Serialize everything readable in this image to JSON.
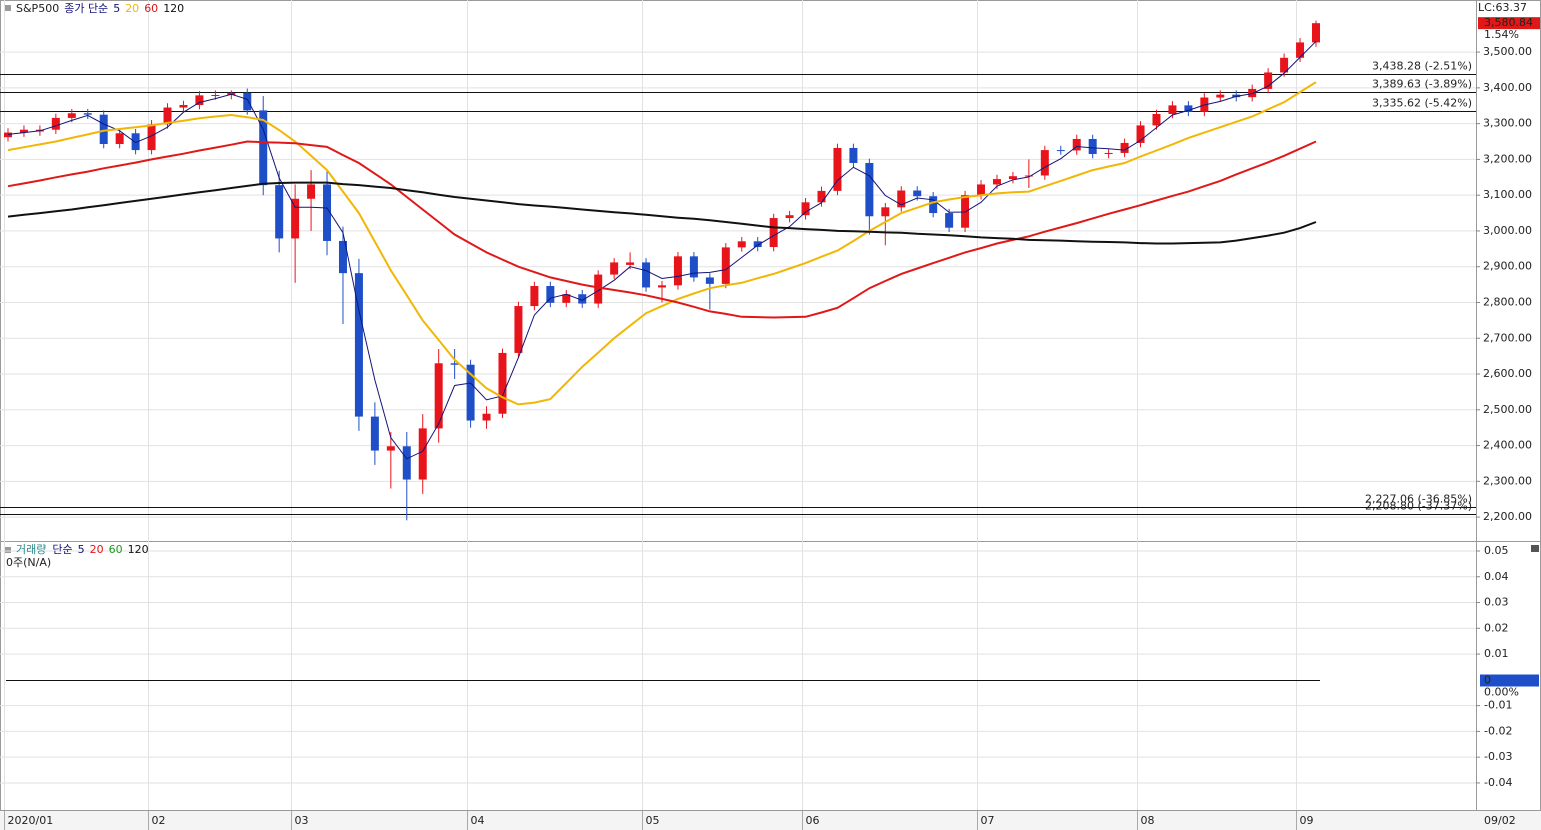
{
  "chart_data": [
    {
      "type": "candlestick",
      "title": "S&P500",
      "ma_label": "종가 단순",
      "lc_label": "LC:63.37",
      "last_price": {
        "value": 3580.84,
        "label": "3,580.84"
      },
      "last_change": {
        "value": 1.54,
        "label": "1.54%"
      },
      "date_label": "09/02",
      "up_color": "#e8141c",
      "down_color": "#1f4fc8",
      "categories": [
        "2020/01",
        null,
        null,
        null,
        null,
        null,
        null,
        null,
        null,
        "02",
        null,
        null,
        null,
        null,
        null,
        null,
        null,
        null,
        "03",
        null,
        null,
        null,
        null,
        null,
        null,
        null,
        null,
        null,
        null,
        "04",
        null,
        null,
        null,
        null,
        null,
        null,
        null,
        null,
        null,
        null,
        "05",
        null,
        null,
        null,
        null,
        null,
        null,
        null,
        null,
        null,
        "06",
        null,
        null,
        null,
        null,
        null,
        null,
        null,
        null,
        null,
        null,
        "07",
        null,
        null,
        null,
        null,
        null,
        null,
        null,
        null,
        null,
        "08",
        null,
        null,
        null,
        null,
        null,
        null,
        null,
        null,
        null,
        "09",
        null
      ],
      "open": [
        3262,
        3275,
        3278,
        3283,
        3316,
        3329,
        3325,
        3243,
        3273,
        3226,
        3298,
        3345,
        3352,
        3379,
        3380,
        3386,
        3337,
        3128,
        2979,
        3090,
        3130,
        2972,
        2882,
        2481,
        2386,
        2398,
        2305,
        2448,
        2630,
        2626,
        2470,
        2489,
        2659,
        2790,
        2846,
        2799,
        2823,
        2797,
        2878,
        2905,
        2912,
        2842,
        2848,
        2929,
        2870,
        2852,
        2954,
        2971,
        2955,
        3036,
        3044,
        3080,
        3112,
        3232,
        3190,
        3041,
        3066,
        3113,
        3097,
        3050,
        3009,
        3100,
        3130,
        3145,
        3153,
        3155,
        3226,
        3225,
        3257,
        3215,
        3218,
        3246,
        3295,
        3327,
        3351,
        3333,
        3373,
        3381,
        3374,
        3397,
        3443,
        3484,
        3527
      ],
      "high": [
        3287,
        3295,
        3295,
        3328,
        3341,
        3341,
        3337,
        3285,
        3285,
        3310,
        3357,
        3364,
        3391,
        3393,
        3393,
        3398,
        3377,
        3168,
        3130,
        3170,
        3170,
        3012,
        2922,
        2521,
        2438,
        2438,
        2488,
        2670,
        2670,
        2640,
        2510,
        2671,
        2802,
        2858,
        2858,
        2835,
        2835,
        2890,
        2924,
        2940,
        2924,
        2860,
        2941,
        2941,
        2882,
        2966,
        2983,
        2983,
        3048,
        3056,
        3092,
        3124,
        3244,
        3244,
        3202,
        3078,
        3125,
        3125,
        3109,
        3062,
        3112,
        3142,
        3157,
        3165,
        3200,
        3238,
        3238,
        3269,
        3269,
        3230,
        3258,
        3307,
        3339,
        3363,
        3363,
        3385,
        3393,
        3393,
        3409,
        3455,
        3496,
        3539,
        3588
      ],
      "low": [
        3250,
        3263,
        3266,
        3271,
        3304,
        3313,
        3231,
        3231,
        3214,
        3214,
        3286,
        3333,
        3340,
        3367,
        3368,
        3325,
        3100,
        2940,
        2855,
        3000,
        2932,
        2740,
        2441,
        2346,
        2280,
        2191,
        2265,
        2408,
        2586,
        2450,
        2447,
        2477,
        2647,
        2778,
        2787,
        2787,
        2785,
        2785,
        2866,
        2893,
        2830,
        2800,
        2836,
        2858,
        2780,
        2840,
        2942,
        2943,
        2943,
        3024,
        3032,
        3068,
        3100,
        3178,
        2990,
        2960,
        3054,
        3085,
        3038,
        2997,
        2997,
        3088,
        3118,
        3133,
        3120,
        3143,
        3213,
        3213,
        3203,
        3203,
        3206,
        3234,
        3283,
        3315,
        3321,
        3321,
        3361,
        3362,
        3362,
        3385,
        3431,
        3472,
        3515
      ],
      "close": [
        3275,
        3283,
        3283,
        3316,
        3329,
        3325,
        3243,
        3273,
        3226,
        3298,
        3345,
        3352,
        3379,
        3380,
        3386,
        3337,
        3128,
        2979,
        3090,
        3130,
        2972,
        2882,
        2481,
        2386,
        2398,
        2305,
        2448,
        2630,
        2626,
        2470,
        2489,
        2659,
        2790,
        2846,
        2799,
        2823,
        2797,
        2878,
        2912,
        2912,
        2842,
        2848,
        2929,
        2870,
        2852,
        2954,
        2971,
        2955,
        3036,
        3044,
        3080,
        3112,
        3232,
        3190,
        3041,
        3066,
        3113,
        3097,
        3050,
        3009,
        3100,
        3130,
        3145,
        3153,
        3155,
        3226,
        3225,
        3257,
        3215,
        3218,
        3246,
        3295,
        3327,
        3351,
        3333,
        3373,
        3381,
        3374,
        3397,
        3443,
        3484,
        3527,
        3580.84
      ],
      "series": [
        {
          "name": "5",
          "color": "#14147a",
          "width": 1,
          "values": [
            3270,
            3275,
            3280,
            3294,
            3309,
            3323,
            3299,
            3280,
            3247,
            3266,
            3290,
            3332,
            3359,
            3370,
            3382,
            3368,
            3284,
            3148,
            3066,
            3066,
            3064,
            2995,
            2778,
            2583,
            2422,
            2363,
            2384,
            2461,
            2568,
            2575,
            2528,
            2539,
            2646,
            2765,
            2812,
            2823,
            2806,
            2833,
            2862,
            2900,
            2889,
            2867,
            2873,
            2882,
            2884,
            2892,
            2926,
            2960,
            2987,
            3012,
            3053,
            3079,
            3141,
            3178,
            3154,
            3099,
            3073,
            3092,
            3087,
            3052,
            3053,
            3080,
            3125,
            3143,
            3151,
            3178,
            3202,
            3236,
            3232,
            3230,
            3226,
            3253,
            3289,
            3324,
            3337,
            3352,
            3362,
            3376,
            3384,
            3405,
            3441,
            3485,
            3530
          ]
        },
        {
          "name": "20",
          "color": "#f2b705",
          "width": 2,
          "values": [
            3226,
            3234,
            3242,
            3250,
            3260,
            3270,
            3280,
            3285,
            3290,
            3295,
            3302,
            3308,
            3315,
            3320,
            3324,
            3318,
            3310,
            3282,
            3250,
            3210,
            3170,
            3110,
            3050,
            2970,
            2890,
            2820,
            2750,
            2695,
            2640,
            2600,
            2560,
            2535,
            2515,
            2520,
            2530,
            2575,
            2620,
            2660,
            2700,
            2735,
            2770,
            2790,
            2810,
            2825,
            2840,
            2848,
            2855,
            2868,
            2880,
            2895,
            2910,
            2928,
            2945,
            2972,
            3000,
            3025,
            3050,
            3065,
            3080,
            3088,
            3095,
            3100,
            3105,
            3108,
            3110,
            3125,
            3140,
            3155,
            3170,
            3180,
            3190,
            3208,
            3225,
            3242,
            3260,
            3275,
            3290,
            3305,
            3320,
            3340,
            3360,
            3388,
            3416
          ]
        },
        {
          "name": "60",
          "color": "#e01818",
          "width": 2,
          "values": [
            3125,
            3133,
            3141,
            3150,
            3158,
            3166,
            3175,
            3183,
            3191,
            3200,
            3208,
            3216,
            3225,
            3233,
            3241,
            3250,
            3248,
            3247,
            3245,
            3240,
            3235,
            3212,
            3190,
            3160,
            3130,
            3095,
            3060,
            3025,
            2990,
            2965,
            2940,
            2920,
            2900,
            2885,
            2870,
            2860,
            2850,
            2842,
            2835,
            2828,
            2820,
            2810,
            2800,
            2788,
            2775,
            2768,
            2760,
            2759,
            2758,
            2759,
            2760,
            2772,
            2785,
            2812,
            2840,
            2860,
            2880,
            2895,
            2910,
            2925,
            2940,
            2952,
            2965,
            2975,
            2985,
            2998,
            3010,
            3022,
            3035,
            3048,
            3060,
            3072,
            3085,
            3098,
            3110,
            3125,
            3140,
            3158,
            3175,
            3192,
            3210,
            3230,
            3250
          ]
        },
        {
          "name": "120",
          "color": "#111111",
          "width": 2,
          "values": [
            3040,
            3045,
            3050,
            3055,
            3060,
            3066,
            3072,
            3078,
            3084,
            3090,
            3096,
            3102,
            3108,
            3114,
            3120,
            3126,
            3132,
            3134,
            3135,
            3135,
            3135,
            3131,
            3128,
            3124,
            3120,
            3114,
            3108,
            3101,
            3095,
            3090,
            3085,
            3080,
            3075,
            3071,
            3068,
            3064,
            3060,
            3056,
            3052,
            3049,
            3045,
            3041,
            3037,
            3034,
            3030,
            3025,
            3020,
            3015,
            3010,
            3008,
            3005,
            3003,
            3000,
            2999,
            2998,
            2996,
            2995,
            2992,
            2990,
            2988,
            2985,
            2982,
            2980,
            2978,
            2975,
            2974,
            2973,
            2971,
            2970,
            2969,
            2968,
            2966,
            2965,
            2965,
            2966,
            2967,
            2968,
            2973,
            2980,
            2987,
            2995,
            3008,
            3025
          ]
        }
      ],
      "levels": [
        {
          "value": 3438.28,
          "label": "3,438.28 (-2.51%)"
        },
        {
          "value": 3389.63,
          "label": "3,389.63 (-3.89%)"
        },
        {
          "value": 3335.62,
          "label": "3,335.62 (-5.42%)"
        },
        {
          "value": 2227.06,
          "label": "2,227.06 (-36.85%)"
        },
        {
          "value": 2208.8,
          "label": "2,208.80 (-37.37%)"
        }
      ],
      "ylim": [
        2136,
        3640
      ],
      "yticks": [
        {
          "value": 2200,
          "label": "2,200.00"
        },
        {
          "value": 2300,
          "label": "2,300.00"
        },
        {
          "value": 2400,
          "label": "2,400.00"
        },
        {
          "value": 2500,
          "label": "2,500.00"
        },
        {
          "value": 2600,
          "label": "2,600.00"
        },
        {
          "value": 2700,
          "label": "2,700.00"
        },
        {
          "value": 2800,
          "label": "2,800.00"
        },
        {
          "value": 2900,
          "label": "2,900.00"
        },
        {
          "value": 3000,
          "label": "3,000.00"
        },
        {
          "value": 3100,
          "label": "3,100.00"
        },
        {
          "value": 3200,
          "label": "3,200.00"
        },
        {
          "value": 3300,
          "label": "3,300.00"
        },
        {
          "value": 3400,
          "label": "3,400.00"
        },
        {
          "value": 3500,
          "label": "3,500.00"
        }
      ],
      "grid": true
    },
    {
      "type": "volume",
      "title": "거래량",
      "ma_label": "단순",
      "status": "0주(N/A)",
      "series": [
        {
          "name": "5",
          "color": "#14147a"
        },
        {
          "name": "20",
          "color": "#e01818"
        },
        {
          "name": "60",
          "color": "#1a9a1a"
        },
        {
          "name": "120",
          "color": "#111111"
        }
      ],
      "current_value": 0,
      "current_change": {
        "value": 0,
        "label": "0.00%"
      },
      "ylim": [
        -0.0505,
        0.0531
      ],
      "yticks": [
        0.05,
        0.04,
        0.03,
        0.02,
        0.01,
        -0.01,
        -0.02,
        -0.03,
        -0.04
      ],
      "grid": true
    }
  ]
}
